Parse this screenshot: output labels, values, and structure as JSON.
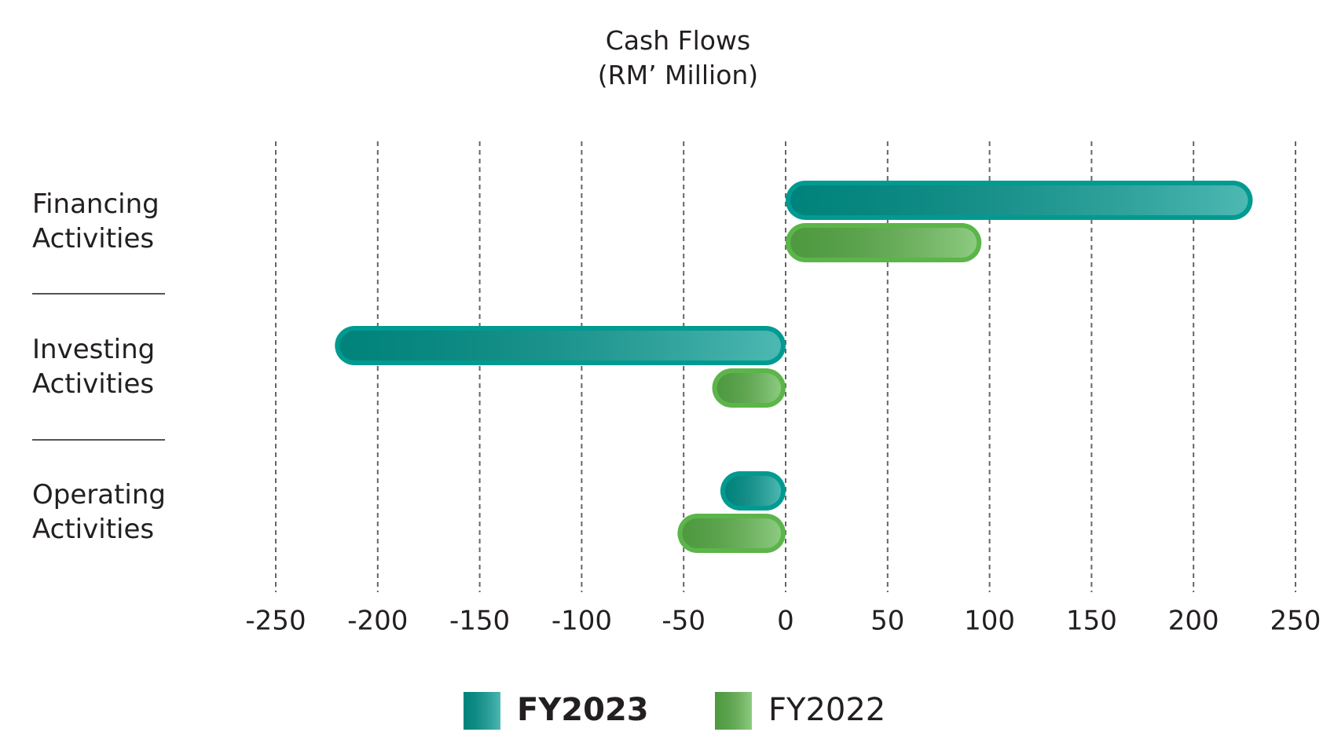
{
  "chart_data": {
    "type": "bar",
    "orientation": "horizontal",
    "title": "Cash Flows",
    "subtitle": "(RM’ Million)",
    "categories": [
      "Financing Activities",
      "Investing Activities",
      "Operating Activities"
    ],
    "series": [
      {
        "name": "FY2023",
        "color": "#009a91",
        "values": [
          229,
          -221,
          -32
        ]
      },
      {
        "name": "FY2022",
        "color": "#5cb54a",
        "values": [
          96,
          -36,
          -53
        ]
      }
    ],
    "xlim": [
      -250,
      250
    ],
    "xticks": [
      -250,
      -200,
      -150,
      -100,
      -50,
      0,
      50,
      100,
      150,
      200,
      250
    ],
    "grid": true
  }
}
